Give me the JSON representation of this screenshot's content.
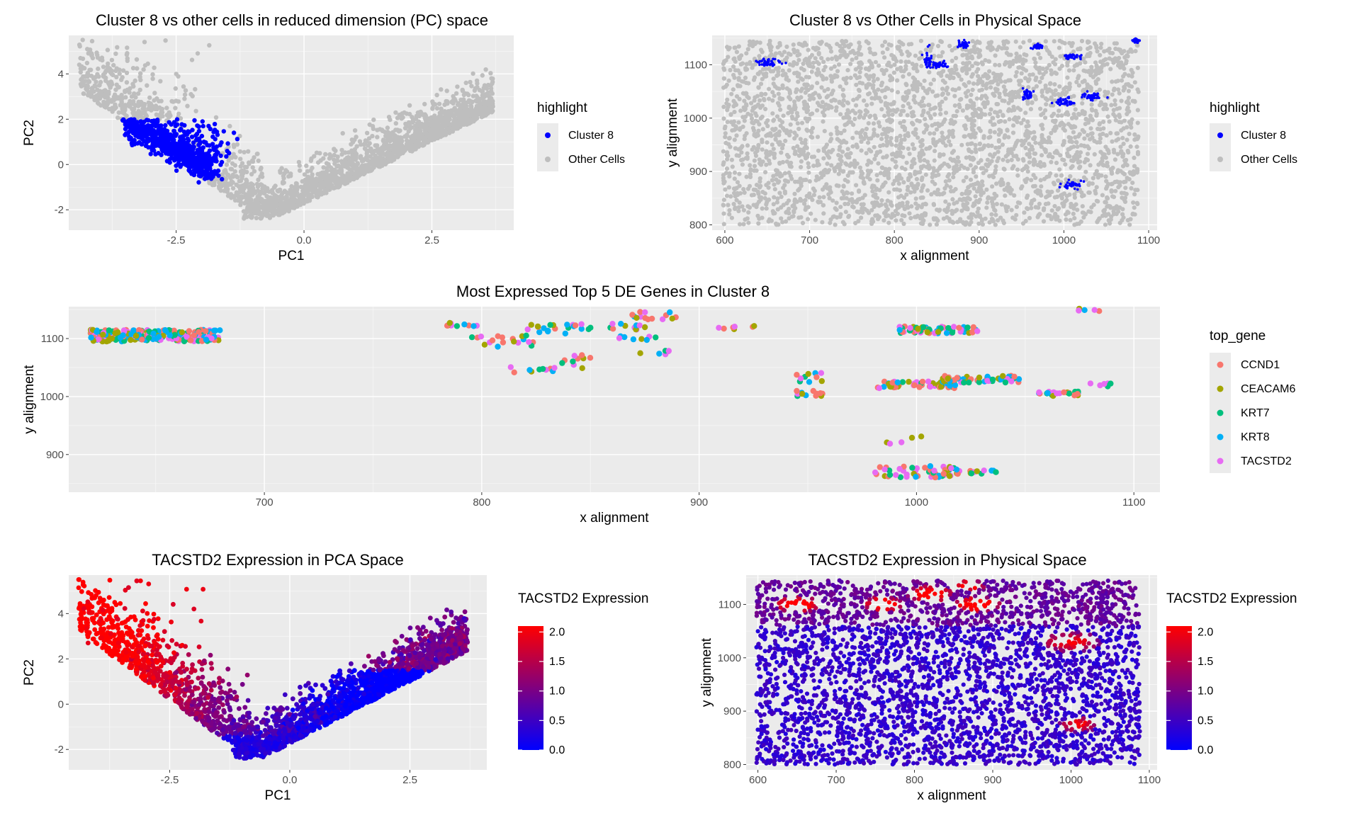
{
  "figure": {
    "colors": {
      "panel_bg": "#ebebeb",
      "grid": "#ffffff",
      "blue": "#0000ff",
      "grey": "#bebebe",
      "red": "#ff0000"
    }
  },
  "chart_data": [
    {
      "id": "p1",
      "type": "scatter",
      "title": "Cluster 8 vs other cells in reduced dimension (PC) space",
      "xlabel": "PC1",
      "ylabel": "PC2",
      "xlim": [
        -4.6,
        4.1
      ],
      "ylim": [
        -2.9,
        5.7
      ],
      "xticks": [
        -2.5,
        0.0,
        2.5
      ],
      "xtick_labels": [
        "-2.5",
        "0.0",
        "2.5"
      ],
      "yticks": [
        -2,
        0,
        2,
        4
      ],
      "ytick_labels": [
        "-2",
        "0",
        "2",
        "4"
      ],
      "legend": {
        "title": "highlight",
        "position": "right",
        "entries": [
          {
            "label": "Cluster 8",
            "color": "#0000ff"
          },
          {
            "label": "Other Cells",
            "color": "#bebebe"
          }
        ]
      }
    },
    {
      "id": "p2",
      "type": "scatter",
      "title": "Cluster 8 vs Other Cells in Physical Space",
      "xlabel": "x alignment",
      "ylabel": "y alignment",
      "xlim": [
        585,
        1110
      ],
      "ylim": [
        790,
        1155
      ],
      "xticks": [
        600,
        700,
        800,
        900,
        1000,
        1100
      ],
      "xtick_labels": [
        "600",
        "700",
        "800",
        "900",
        "1000",
        "1100"
      ],
      "yticks": [
        800,
        900,
        1000,
        1100
      ],
      "ytick_labels": [
        "800",
        "900",
        "1000",
        "1100"
      ],
      "legend": {
        "title": "highlight",
        "position": "right",
        "entries": [
          {
            "label": "Cluster 8",
            "color": "#0000ff"
          },
          {
            "label": "Other Cells",
            "color": "#bebebe"
          }
        ]
      }
    },
    {
      "id": "p3",
      "type": "scatter",
      "title": "Most Expressed Top 5 DE Genes in Cluster 8",
      "xlabel": "x alignment",
      "ylabel": "y alignment",
      "xlim": [
        610,
        1112
      ],
      "ylim": [
        835,
        1155
      ],
      "xticks": [
        700,
        800,
        900,
        1000,
        1100
      ],
      "xtick_labels": [
        "700",
        "800",
        "900",
        "1000",
        "1100"
      ],
      "yticks": [
        900,
        1000,
        1100
      ],
      "ytick_labels": [
        "900",
        "1000",
        "1100"
      ],
      "legend": {
        "title": "top_gene",
        "position": "right",
        "entries": [
          {
            "label": "CCND1",
            "color": "#f8766d"
          },
          {
            "label": "CEACAM6",
            "color": "#a3a500"
          },
          {
            "label": "KRT7",
            "color": "#00bf7d"
          },
          {
            "label": "KRT8",
            "color": "#00b0f6"
          },
          {
            "label": "TACSTD2",
            "color": "#e76bf3"
          }
        ]
      }
    },
    {
      "id": "p4",
      "type": "scatter",
      "title": "TACSTD2 Expression in PCA Space",
      "xlabel": "PC1",
      "ylabel": "PC2",
      "xlim": [
        -4.6,
        4.1
      ],
      "ylim": [
        -2.9,
        5.7
      ],
      "xticks": [
        -2.5,
        0.0,
        2.5
      ],
      "xtick_labels": [
        "-2.5",
        "0.0",
        "2.5"
      ],
      "yticks": [
        -2,
        0,
        2,
        4
      ],
      "ytick_labels": [
        "-2",
        "0",
        "2",
        "4"
      ],
      "colorbar": {
        "title": "TACSTD2 Expression",
        "min": 0,
        "max": 2.1,
        "low_color": "#0000ff",
        "high_color": "#ff0000",
        "ticks": [
          0.0,
          0.5,
          1.0,
          1.5,
          2.0
        ],
        "tick_labels": [
          "0.0",
          "0.5",
          "1.0",
          "1.5",
          "2.0"
        ]
      }
    },
    {
      "id": "p5",
      "type": "scatter",
      "title": "TACSTD2 Expression in Physical Space",
      "xlabel": "x alignment",
      "ylabel": "y alignment",
      "xlim": [
        585,
        1110
      ],
      "ylim": [
        790,
        1155
      ],
      "xticks": [
        600,
        700,
        800,
        900,
        1000,
        1100
      ],
      "xtick_labels": [
        "600",
        "700",
        "800",
        "900",
        "1000",
        "1100"
      ],
      "yticks": [
        800,
        900,
        1000,
        1100
      ],
      "ytick_labels": [
        "800",
        "900",
        "1000",
        "1100"
      ],
      "colorbar": {
        "title": "TACSTD2 Expression",
        "min": 0,
        "max": 2.1,
        "low_color": "#0000ff",
        "high_color": "#ff0000",
        "ticks": [
          0.0,
          0.5,
          1.0,
          1.5,
          2.0
        ],
        "tick_labels": [
          "0.0",
          "0.5",
          "1.0",
          "1.5",
          "2.0"
        ]
      }
    }
  ]
}
